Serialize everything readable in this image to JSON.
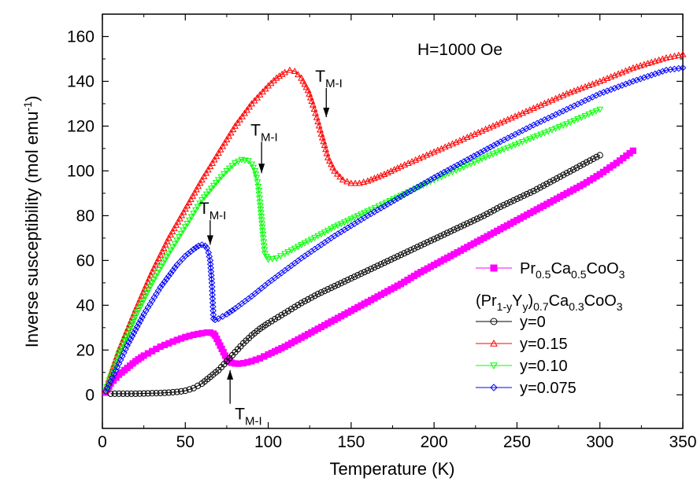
{
  "chart_data": {
    "type": "scatter",
    "title": "",
    "annotation_field": "H=1000 Oe",
    "xlabel": "Temperature (K)",
    "ylabel": "Inverse susceptibility (mol emu",
    "ylabel_sup": "-1",
    "ylabel_close": ")",
    "xlim": [
      0,
      350
    ],
    "ylim": [
      -15,
      170
    ],
    "x_ticks": [
      0,
      50,
      100,
      150,
      200,
      250,
      300,
      350
    ],
    "y_ticks": [
      0,
      20,
      40,
      60,
      80,
      100,
      120,
      140,
      160
    ],
    "grid": false,
    "legend_position": "bottom-right",
    "legend_header": {
      "main": "(Pr",
      "sub1": "1-y",
      "mid": "Y",
      "sub2": "y",
      "end": ")",
      "sub3": "0.7",
      "tail": "Ca",
      "sub4": "0.3",
      "tail2": "CoO",
      "sub5": "3"
    },
    "series": [
      {
        "legend": {
          "parts": [
            "Pr",
            "0.5",
            "Ca",
            "0.5",
            "CoO",
            "3"
          ]
        },
        "color": "#ff00ff",
        "marker": "square-filled",
        "x": [
          2,
          5,
          10,
          15,
          20,
          25,
          30,
          35,
          40,
          45,
          50,
          55,
          60,
          63,
          65,
          67,
          68,
          69,
          70,
          71,
          72,
          73,
          74,
          75,
          76,
          77,
          78,
          80,
          82,
          85,
          90,
          95,
          100,
          110,
          120,
          130,
          140,
          150,
          160,
          170,
          180,
          190,
          200,
          210,
          220,
          230,
          240,
          250,
          260,
          270,
          280,
          290,
          300,
          310,
          320
        ],
        "y": [
          1,
          5,
          9,
          12,
          15,
          17.5,
          19.5,
          21.5,
          23,
          24.5,
          25.8,
          26.8,
          27.5,
          27.8,
          27.8,
          27.3,
          26.5,
          25,
          23.5,
          22,
          20.5,
          19,
          17.5,
          16.3,
          15.3,
          14.7,
          14.3,
          14,
          13.9,
          14.1,
          15,
          16.3,
          18,
          21.5,
          25.5,
          29.5,
          33.5,
          37.5,
          41.5,
          45.5,
          49.5,
          54,
          58,
          62,
          66,
          70,
          74,
          78,
          82,
          86,
          90,
          94,
          98.5,
          103.5,
          109
        ]
      },
      {
        "legend": {
          "label": "y=0"
        },
        "color": "#000000",
        "marker": "circle-open",
        "x": [
          5,
          10,
          15,
          20,
          25,
          30,
          35,
          40,
          45,
          50,
          55,
          60,
          65,
          70,
          75,
          80,
          85,
          90,
          95,
          100,
          110,
          120,
          130,
          140,
          150,
          160,
          170,
          180,
          190,
          200,
          210,
          220,
          230,
          240,
          250,
          260,
          270,
          280,
          290,
          300
        ],
        "y": [
          0.5,
          0.5,
          0.5,
          0.5,
          0.6,
          0.7,
          0.8,
          1,
          1.3,
          1.8,
          3,
          5,
          8,
          11,
          15,
          19,
          23,
          26.5,
          29.5,
          32,
          36.5,
          41,
          45,
          48.5,
          52,
          55.5,
          59,
          62.5,
          66,
          69.5,
          73,
          76.5,
          80,
          84,
          87.5,
          91,
          95,
          99,
          103,
          107
        ]
      },
      {
        "legend": {
          "label": "y=0.15"
        },
        "color": "#ff0000",
        "marker": "triangle-up-open",
        "x": [
          2,
          5,
          10,
          20,
          30,
          40,
          50,
          60,
          70,
          80,
          90,
          100,
          105,
          110,
          113,
          116,
          120,
          124,
          127,
          130,
          132,
          134,
          136,
          140,
          145,
          150,
          155,
          160,
          170,
          180,
          200,
          220,
          240,
          260,
          280,
          300,
          320,
          340,
          350
        ],
        "y": [
          2,
          9,
          20,
          38,
          55,
          70,
          83,
          96,
          108,
          120,
          130,
          138,
          141.5,
          144,
          145,
          144.5,
          141.5,
          136,
          129.5,
          122,
          116.5,
          111.5,
          106,
          100,
          96,
          94.5,
          94.5,
          95.5,
          98.5,
          102,
          108.5,
          115,
          121.5,
          128,
          134.5,
          140,
          146,
          150.5,
          152
        ]
      },
      {
        "legend": {
          "label": "y=0.10"
        },
        "color": "#00ff00",
        "marker": "triangle-down-open",
        "x": [
          2,
          5,
          10,
          20,
          30,
          40,
          50,
          60,
          70,
          75,
          80,
          84,
          88,
          90,
          92,
          93,
          94,
          95,
          96,
          97,
          98,
          100,
          105,
          110,
          120,
          130,
          140,
          150,
          160,
          180,
          200,
          220,
          240,
          260,
          280,
          300
        ],
        "y": [
          2,
          8,
          18,
          35,
          50,
          63,
          75,
          87,
          96,
          100,
          103.5,
          105,
          104.5,
          103,
          100,
          97,
          93,
          86,
          78,
          70,
          63,
          60.5,
          61,
          63,
          67,
          71,
          75,
          78.5,
          82,
          89,
          96,
          102.5,
          109,
          115,
          121,
          127.5
        ]
      },
      {
        "legend": {
          "label": "y=0.075"
        },
        "color": "#0000ff",
        "marker": "diamond-open",
        "x": [
          2,
          5,
          10,
          15,
          20,
          25,
          30,
          35,
          40,
          45,
          50,
          55,
          58,
          60,
          62,
          63,
          64,
          65,
          66,
          67,
          68,
          70,
          75,
          80,
          90,
          100,
          110,
          120,
          140,
          160,
          180,
          200,
          220,
          240,
          260,
          280,
          300,
          320,
          340,
          350
        ],
        "y": [
          1.5,
          6,
          14,
          22,
          29,
          36,
          42,
          48,
          53,
          58,
          62,
          65,
          66.5,
          67,
          66.5,
          65.5,
          63.5,
          60,
          50,
          34,
          33.5,
          34,
          36,
          38.5,
          44,
          50,
          55.5,
          61,
          71,
          80,
          88.5,
          97,
          105,
          113,
          120.5,
          127.5,
          134.5,
          140,
          145,
          146
        ]
      }
    ],
    "annotations": [
      {
        "main": "T",
        "sub": "M-I",
        "arrow_dir": "down",
        "tail": [
          135,
          137
        ],
        "head": [
          135,
          124
        ]
      },
      {
        "main": "T",
        "sub": "M-I",
        "arrow_dir": "down",
        "tail": [
          96,
          113
        ],
        "head": [
          96,
          99
        ]
      },
      {
        "main": "T",
        "sub": "M-I",
        "arrow_dir": "down",
        "tail": [
          65,
          78
        ],
        "head": [
          65,
          67
        ]
      },
      {
        "main": "T",
        "sub": "M-I",
        "arrow_dir": "up",
        "tail": [
          77,
          -4
        ],
        "head": [
          77,
          11
        ]
      }
    ]
  }
}
